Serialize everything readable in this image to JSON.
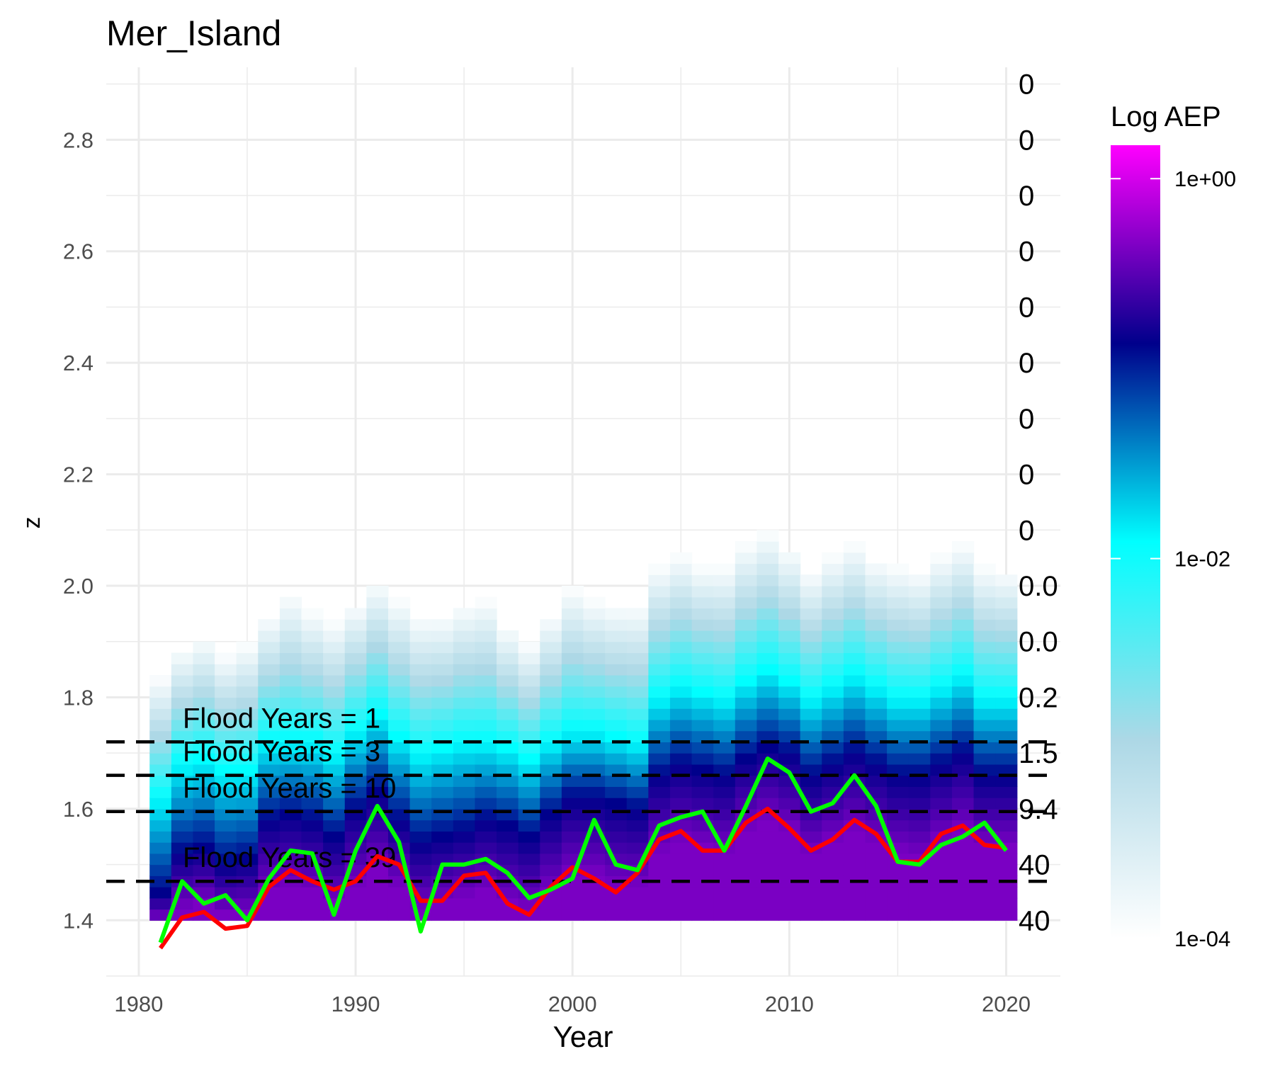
{
  "chart_data": {
    "type": "heatmap",
    "title": "Mer_Island",
    "xlabel": "Year",
    "ylabel": "z",
    "xlim": [
      1978.5,
      2022.5
    ],
    "ylim": [
      1.3,
      2.93
    ],
    "grid": true,
    "x_ticks": [
      1980,
      1990,
      2000,
      2010,
      2020
    ],
    "y_ticks": [
      1.4,
      1.6,
      1.8,
      2.0,
      2.2,
      2.4,
      2.6,
      2.8
    ],
    "legend": {
      "title": "Log AEP",
      "position": "right",
      "scale": "log",
      "range": [
        0.0001,
        1.5
      ],
      "breaks": [
        {
          "value": 1,
          "label": "1e+00"
        },
        {
          "value": 0.01,
          "label": "1e-02"
        },
        {
          "value": 0.0001,
          "label": "1e-04"
        }
      ],
      "colors": [
        "#ffffff",
        "#add8e6",
        "#00ffff",
        "#00008b",
        "#ff00ff"
      ]
    },
    "heatmap": {
      "years": [
        1981,
        1982,
        1983,
        1984,
        1985,
        1986,
        1987,
        1988,
        1989,
        1990,
        1991,
        1992,
        1993,
        1994,
        1995,
        1996,
        1997,
        1998,
        1999,
        2000,
        2001,
        2002,
        2003,
        2004,
        2005,
        2006,
        2007,
        2008,
        2009,
        2010,
        2011,
        2012,
        2013,
        2014,
        2015,
        2016,
        2017,
        2018,
        2019,
        2020
      ],
      "z_min": 1.4,
      "z_step": 0.02,
      "top_z": [
        1.84,
        1.89,
        1.91,
        1.88,
        1.9,
        1.95,
        1.99,
        1.96,
        1.94,
        1.97,
        2.01,
        1.98,
        1.95,
        1.95,
        1.97,
        1.98,
        1.93,
        1.9,
        1.95,
        2.0,
        1.98,
        1.97,
        1.97,
        2.04,
        2.06,
        2.04,
        2.04,
        2.08,
        2.1,
        2.07,
        2.03,
        2.06,
        2.08,
        2.05,
        2.04,
        2.03,
        2.06,
        2.08,
        2.04,
        2.03
      ],
      "cyan_z": [
        1.62,
        1.68,
        1.69,
        1.67,
        1.67,
        1.72,
        1.72,
        1.72,
        1.7,
        1.74,
        1.77,
        1.73,
        1.7,
        1.71,
        1.72,
        1.72,
        1.71,
        1.69,
        1.72,
        1.74,
        1.74,
        1.73,
        1.72,
        1.8,
        1.82,
        1.81,
        1.8,
        1.83,
        1.85,
        1.83,
        1.8,
        1.82,
        1.84,
        1.82,
        1.8,
        1.8,
        1.82,
        1.84,
        1.8,
        1.8
      ],
      "navy_z": [
        1.45,
        1.52,
        1.53,
        1.5,
        1.51,
        1.58,
        1.59,
        1.58,
        1.55,
        1.6,
        1.63,
        1.58,
        1.54,
        1.55,
        1.56,
        1.58,
        1.57,
        1.55,
        1.59,
        1.62,
        1.62,
        1.61,
        1.6,
        1.66,
        1.68,
        1.67,
        1.66,
        1.69,
        1.71,
        1.7,
        1.66,
        1.68,
        1.7,
        1.68,
        1.66,
        1.66,
        1.68,
        1.7,
        1.66,
        1.66
      ],
      "magenta_z": [
        1.4,
        1.42,
        1.43,
        1.41,
        1.41,
        1.45,
        1.46,
        1.45,
        1.43,
        1.46,
        1.49,
        1.46,
        1.42,
        1.43,
        1.44,
        1.45,
        1.43,
        1.42,
        1.45,
        1.48,
        1.48,
        1.46,
        1.46,
        1.52,
        1.54,
        1.53,
        1.52,
        1.56,
        1.58,
        1.56,
        1.52,
        1.54,
        1.56,
        1.54,
        1.52,
        1.51,
        1.54,
        1.56,
        1.53,
        1.53
      ]
    },
    "series": [
      {
        "color": "#ff0000",
        "x": [
          1981,
          1982,
          1983,
          1984,
          1985,
          1986,
          1987,
          1988,
          1989,
          1990,
          1991,
          1992,
          1993,
          1994,
          1995,
          1996,
          1997,
          1998,
          1999,
          2000,
          2001,
          2002,
          2003,
          2004,
          2005,
          2006,
          2007,
          2008,
          2009,
          2010,
          2011,
          2012,
          2013,
          2014,
          2015,
          2016,
          2017,
          2018,
          2019,
          2020
        ],
        "y": [
          1.35,
          1.405,
          1.415,
          1.385,
          1.39,
          1.46,
          1.49,
          1.47,
          1.455,
          1.47,
          1.515,
          1.5,
          1.435,
          1.435,
          1.48,
          1.485,
          1.43,
          1.41,
          1.46,
          1.495,
          1.475,
          1.45,
          1.485,
          1.545,
          1.56,
          1.525,
          1.525,
          1.575,
          1.6,
          1.565,
          1.525,
          1.545,
          1.58,
          1.555,
          1.505,
          1.505,
          1.555,
          1.57,
          1.535,
          1.53
        ]
      },
      {
        "color": "#00ff00",
        "x": [
          1981,
          1982,
          1983,
          1984,
          1985,
          1986,
          1987,
          1988,
          1989,
          1990,
          1991,
          1992,
          1993,
          1994,
          1995,
          1996,
          1997,
          1998,
          1999,
          2000,
          2001,
          2002,
          2003,
          2004,
          2005,
          2006,
          2007,
          2008,
          2009,
          2010,
          2011,
          2012,
          2013,
          2014,
          2015,
          2016,
          2017,
          2018,
          2019,
          2020
        ],
        "y": [
          1.36,
          1.47,
          1.43,
          1.445,
          1.4,
          1.475,
          1.525,
          1.52,
          1.41,
          1.525,
          1.605,
          1.54,
          1.38,
          1.5,
          1.5,
          1.51,
          1.485,
          1.44,
          1.455,
          1.475,
          1.58,
          1.5,
          1.49,
          1.57,
          1.585,
          1.595,
          1.525,
          1.605,
          1.69,
          1.665,
          1.595,
          1.61,
          1.66,
          1.605,
          1.505,
          1.5,
          1.535,
          1.55,
          1.575,
          1.525
        ]
      }
    ],
    "thresholds": [
      {
        "z": 1.72,
        "label": "Flood Years = 1"
      },
      {
        "z": 1.66,
        "label": "Flood Years = 3"
      },
      {
        "z": 1.595,
        "label": "Flood Years = 10"
      },
      {
        "z": 1.47,
        "label": "Flood Years = 39"
      }
    ],
    "right_labels": [
      {
        "z": 2.9,
        "text": "0"
      },
      {
        "z": 2.8,
        "text": "0"
      },
      {
        "z": 2.7,
        "text": "0"
      },
      {
        "z": 2.6,
        "text": "0"
      },
      {
        "z": 2.5,
        "text": "0"
      },
      {
        "z": 2.4,
        "text": "0"
      },
      {
        "z": 2.3,
        "text": "0"
      },
      {
        "z": 2.2,
        "text": "0"
      },
      {
        "z": 2.1,
        "text": "0"
      },
      {
        "z": 2.0,
        "text": "0.0"
      },
      {
        "z": 1.9,
        "text": "0.0"
      },
      {
        "z": 1.8,
        "text": "0.2"
      },
      {
        "z": 1.7,
        "text": "1.5"
      },
      {
        "z": 1.6,
        "text": "9.4"
      },
      {
        "z": 1.5,
        "text": "40"
      },
      {
        "z": 1.4,
        "text": "40"
      }
    ]
  }
}
